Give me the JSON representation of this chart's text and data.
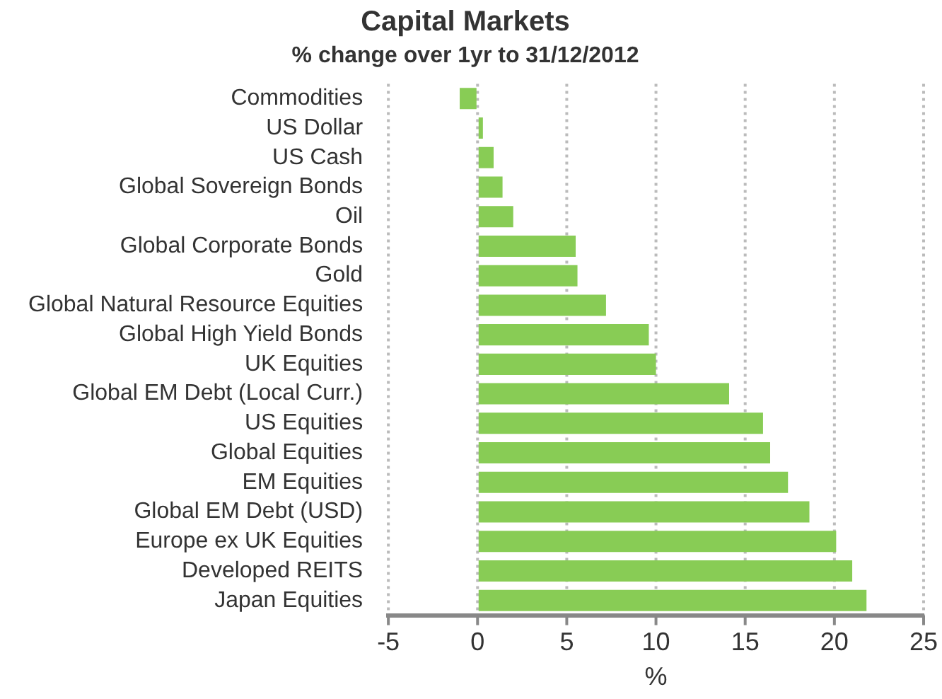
{
  "chart_data": {
    "type": "bar",
    "orientation": "horizontal",
    "title": "Capital Markets",
    "subtitle": "% change over 1yr to 31/12/2012",
    "xlabel": "%",
    "categories": [
      "Commodities",
      "US Dollar",
      "US Cash",
      "Global Sovereign Bonds",
      "Oil",
      "Global Corporate Bonds",
      "Gold",
      "Global Natural Resource Equities",
      "Global High Yield Bonds",
      "UK Equities",
      "Global EM Debt (Local Curr.)",
      "US Equities",
      "Global Equities",
      "EM Equities",
      "Global EM Debt (USD)",
      "Europe ex UK Equities",
      "Developed REITS",
      "Japan Equities"
    ],
    "values": [
      -1.0,
      0.3,
      0.9,
      1.4,
      2.0,
      5.5,
      5.6,
      7.2,
      9.6,
      10.0,
      14.1,
      16.0,
      16.4,
      17.4,
      18.6,
      20.1,
      21.0,
      21.8
    ],
    "color": "#88cc55",
    "xlim": [
      -5,
      25
    ],
    "xticks": [
      -5,
      0,
      5,
      10,
      15,
      20,
      25
    ],
    "grid": "x",
    "legend": false
  }
}
